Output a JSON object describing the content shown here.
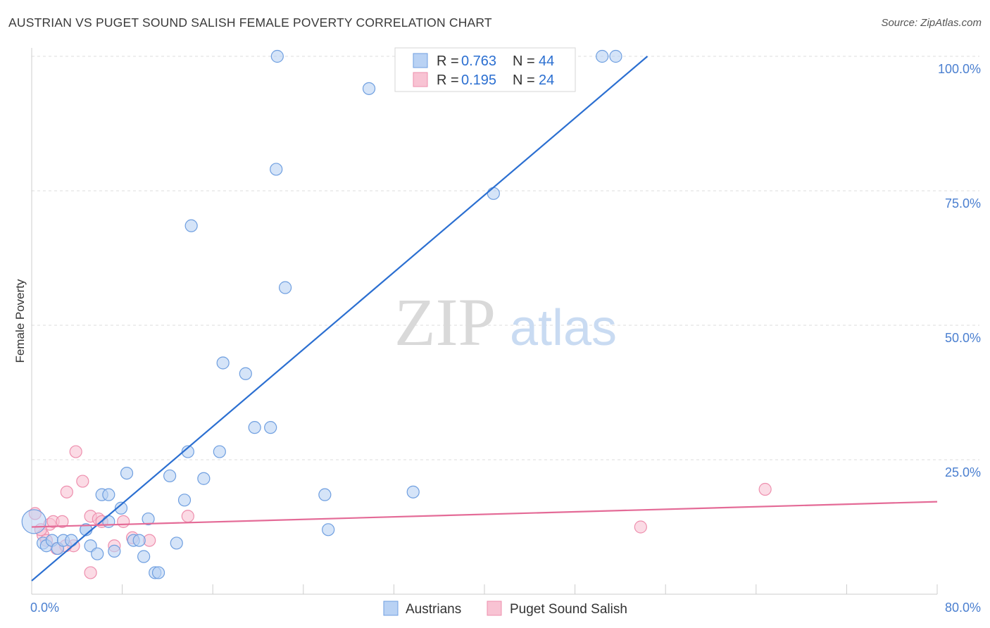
{
  "header": {
    "title": "AUSTRIAN VS PUGET SOUND SALISH FEMALE POVERTY CORRELATION CHART",
    "source": "Source: ZipAtlas.com"
  },
  "watermark": {
    "zip": "ZIP",
    "atlas": "atlas"
  },
  "colors": {
    "blue_fill": "#b9d2f4",
    "blue_stroke": "#6f9fe0",
    "blue_line": "#2b6fd1",
    "pink_fill": "#f8c3d3",
    "pink_stroke": "#ee8fae",
    "pink_line": "#e46b97",
    "tick_text": "#4a7fd0",
    "grid": "#dddddd"
  },
  "legend": {
    "rows": [
      {
        "r_label": "R = ",
        "r_value": "0.763",
        "n_label": "N = ",
        "n_value": "44"
      },
      {
        "r_label": "R = ",
        "r_value": "0.195",
        "n_label": "N = ",
        "n_value": "24"
      }
    ]
  },
  "chart_data": {
    "type": "scatter",
    "title": "AUSTRIAN VS PUGET SOUND SALISH FEMALE POVERTY CORRELATION CHART",
    "xlabel": "",
    "ylabel": "Female Poverty",
    "xlim": [
      0,
      80
    ],
    "ylim": [
      0,
      100
    ],
    "x_tick_labels": [
      "0.0%",
      "80.0%"
    ],
    "y_ticks": [
      {
        "value": 25,
        "label": "25.0%"
      },
      {
        "value": 50,
        "label": "50.0%"
      },
      {
        "value": 75,
        "label": "75.0%"
      },
      {
        "value": 100,
        "label": "100.0%"
      }
    ],
    "grid": true,
    "legend_position": "top-center",
    "series": [
      {
        "name": "Austrians",
        "r": 0.763,
        "n": 44,
        "trend": [
          [
            0,
            2.5
          ],
          [
            54.4,
            100
          ]
        ],
        "points": [
          [
            0.2,
            13.5
          ],
          [
            1.0,
            9.5
          ],
          [
            1.3,
            9.0
          ],
          [
            1.8,
            10.0
          ],
          [
            2.3,
            8.5
          ],
          [
            2.8,
            10.0
          ],
          [
            3.5,
            10.0
          ],
          [
            4.8,
            12.0
          ],
          [
            5.2,
            9.0
          ],
          [
            5.8,
            7.5
          ],
          [
            6.2,
            18.5
          ],
          [
            6.8,
            18.5
          ],
          [
            7.3,
            8.0
          ],
          [
            7.9,
            16.0
          ],
          [
            8.4,
            22.5
          ],
          [
            9.0,
            10.0
          ],
          [
            9.5,
            10.0
          ],
          [
            9.9,
            7.0
          ],
          [
            10.3,
            14.0
          ],
          [
            10.9,
            4.0
          ],
          [
            11.2,
            4.0
          ],
          [
            12.2,
            22.0
          ],
          [
            12.8,
            9.5
          ],
          [
            13.5,
            17.5
          ],
          [
            13.8,
            26.5
          ],
          [
            14.1,
            68.5
          ],
          [
            15.2,
            21.5
          ],
          [
            16.6,
            26.5
          ],
          [
            16.9,
            43.0
          ],
          [
            18.9,
            41.0
          ],
          [
            19.7,
            31.0
          ],
          [
            21.1,
            31.0
          ],
          [
            21.6,
            79.0
          ],
          [
            21.7,
            100.0
          ],
          [
            22.4,
            57.0
          ],
          [
            25.9,
            18.5
          ],
          [
            26.2,
            12.0
          ],
          [
            29.8,
            94.0
          ],
          [
            33.7,
            19.0
          ],
          [
            40.8,
            74.5
          ],
          [
            50.4,
            100.0
          ],
          [
            51.6,
            100.0
          ],
          [
            4.8,
            12.0
          ],
          [
            6.8,
            13.5
          ]
        ]
      },
      {
        "name": "Puget Sound Salish",
        "r": 0.195,
        "n": 24,
        "trend": [
          [
            0,
            12.5
          ],
          [
            80,
            17.2
          ]
        ],
        "points": [
          [
            0.3,
            15.0
          ],
          [
            1.0,
            11.0
          ],
          [
            1.3,
            10.0
          ],
          [
            1.6,
            13.0
          ],
          [
            1.9,
            13.5
          ],
          [
            2.2,
            8.5
          ],
          [
            2.7,
            13.5
          ],
          [
            3.1,
            19.0
          ],
          [
            3.7,
            9.0
          ],
          [
            3.9,
            26.5
          ],
          [
            4.5,
            21.0
          ],
          [
            5.2,
            14.5
          ],
          [
            5.9,
            14.0
          ],
          [
            6.2,
            13.5
          ],
          [
            7.3,
            9.0
          ],
          [
            8.1,
            13.5
          ],
          [
            8.9,
            10.5
          ],
          [
            10.4,
            10.0
          ],
          [
            13.8,
            14.5
          ],
          [
            5.2,
            4.0
          ],
          [
            53.8,
            12.5
          ],
          [
            64.8,
            19.5
          ],
          [
            3.0,
            9.0
          ],
          [
            0.8,
            12.0
          ]
        ]
      }
    ]
  }
}
